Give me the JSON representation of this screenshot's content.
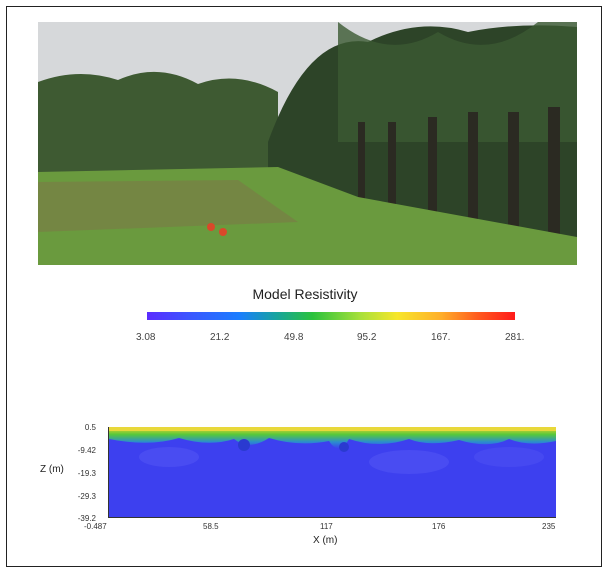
{
  "colorbar": {
    "title": "Model Resistivity",
    "ticks": [
      "3.08",
      "21.2",
      "49.8",
      "95.2",
      "167.",
      "281."
    ]
  },
  "section": {
    "z_label": "Z (m)",
    "x_label": "X (m)",
    "z_ticks": [
      "0.5",
      "-9.42",
      "-19.3",
      "-29.3",
      "-39.2"
    ],
    "x_ticks": [
      "-0.487",
      "58.5",
      "117",
      "176",
      "235"
    ]
  },
  "icons": {
    "photo": "oil-palm-plantation-photo"
  }
}
